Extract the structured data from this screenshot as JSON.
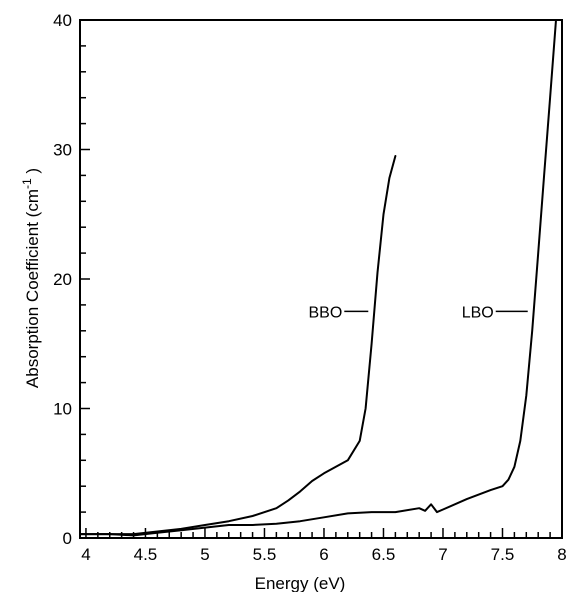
{
  "chart_data": {
    "type": "line",
    "title": "",
    "xlabel": "Energy (eV)",
    "ylabel": "Absorption Coefficient (cm",
    "ylabel_sup": "-1",
    "ylabel_tail": " )",
    "xlim": [
      3.95,
      8.0
    ],
    "ylim": [
      0,
      40
    ],
    "x_ticks": [
      "4",
      "4.5",
      "5",
      "5.5",
      "6",
      "6.5",
      "7",
      "7.5",
      "8"
    ],
    "y_ticks": [
      "0",
      "10",
      "20",
      "30",
      "40"
    ],
    "grid": false,
    "series": [
      {
        "name": "BBO",
        "x": [
          3.95,
          4.2,
          4.4,
          4.6,
          4.8,
          5.0,
          5.2,
          5.4,
          5.6,
          5.7,
          5.8,
          5.9,
          6.0,
          6.1,
          6.2,
          6.3,
          6.35,
          6.4,
          6.45,
          6.5,
          6.55,
          6.6
        ],
        "y": [
          0.3,
          0.3,
          0.3,
          0.5,
          0.7,
          1.0,
          1.3,
          1.7,
          2.3,
          2.9,
          3.6,
          4.4,
          5.0,
          5.5,
          6.0,
          7.5,
          10.0,
          15.0,
          20.5,
          25.0,
          27.8,
          29.5
        ]
      },
      {
        "name": "LBO",
        "x": [
          3.95,
          4.2,
          4.4,
          4.6,
          4.8,
          5.0,
          5.2,
          5.4,
          5.6,
          5.8,
          6.0,
          6.2,
          6.4,
          6.6,
          6.8,
          6.85,
          6.9,
          6.95,
          7.0,
          7.2,
          7.4,
          7.5,
          7.55,
          7.6,
          7.65,
          7.7,
          7.75,
          7.8,
          7.85,
          7.9,
          7.95
        ],
        "y": [
          0.3,
          0.3,
          0.2,
          0.4,
          0.6,
          0.8,
          1.0,
          1.0,
          1.1,
          1.3,
          1.6,
          1.9,
          2.0,
          2.0,
          2.3,
          2.1,
          2.6,
          2.0,
          2.2,
          3.0,
          3.7,
          4.0,
          4.5,
          5.5,
          7.5,
          11.0,
          16.0,
          22.0,
          28.0,
          34.0,
          40.0
        ]
      }
    ]
  }
}
